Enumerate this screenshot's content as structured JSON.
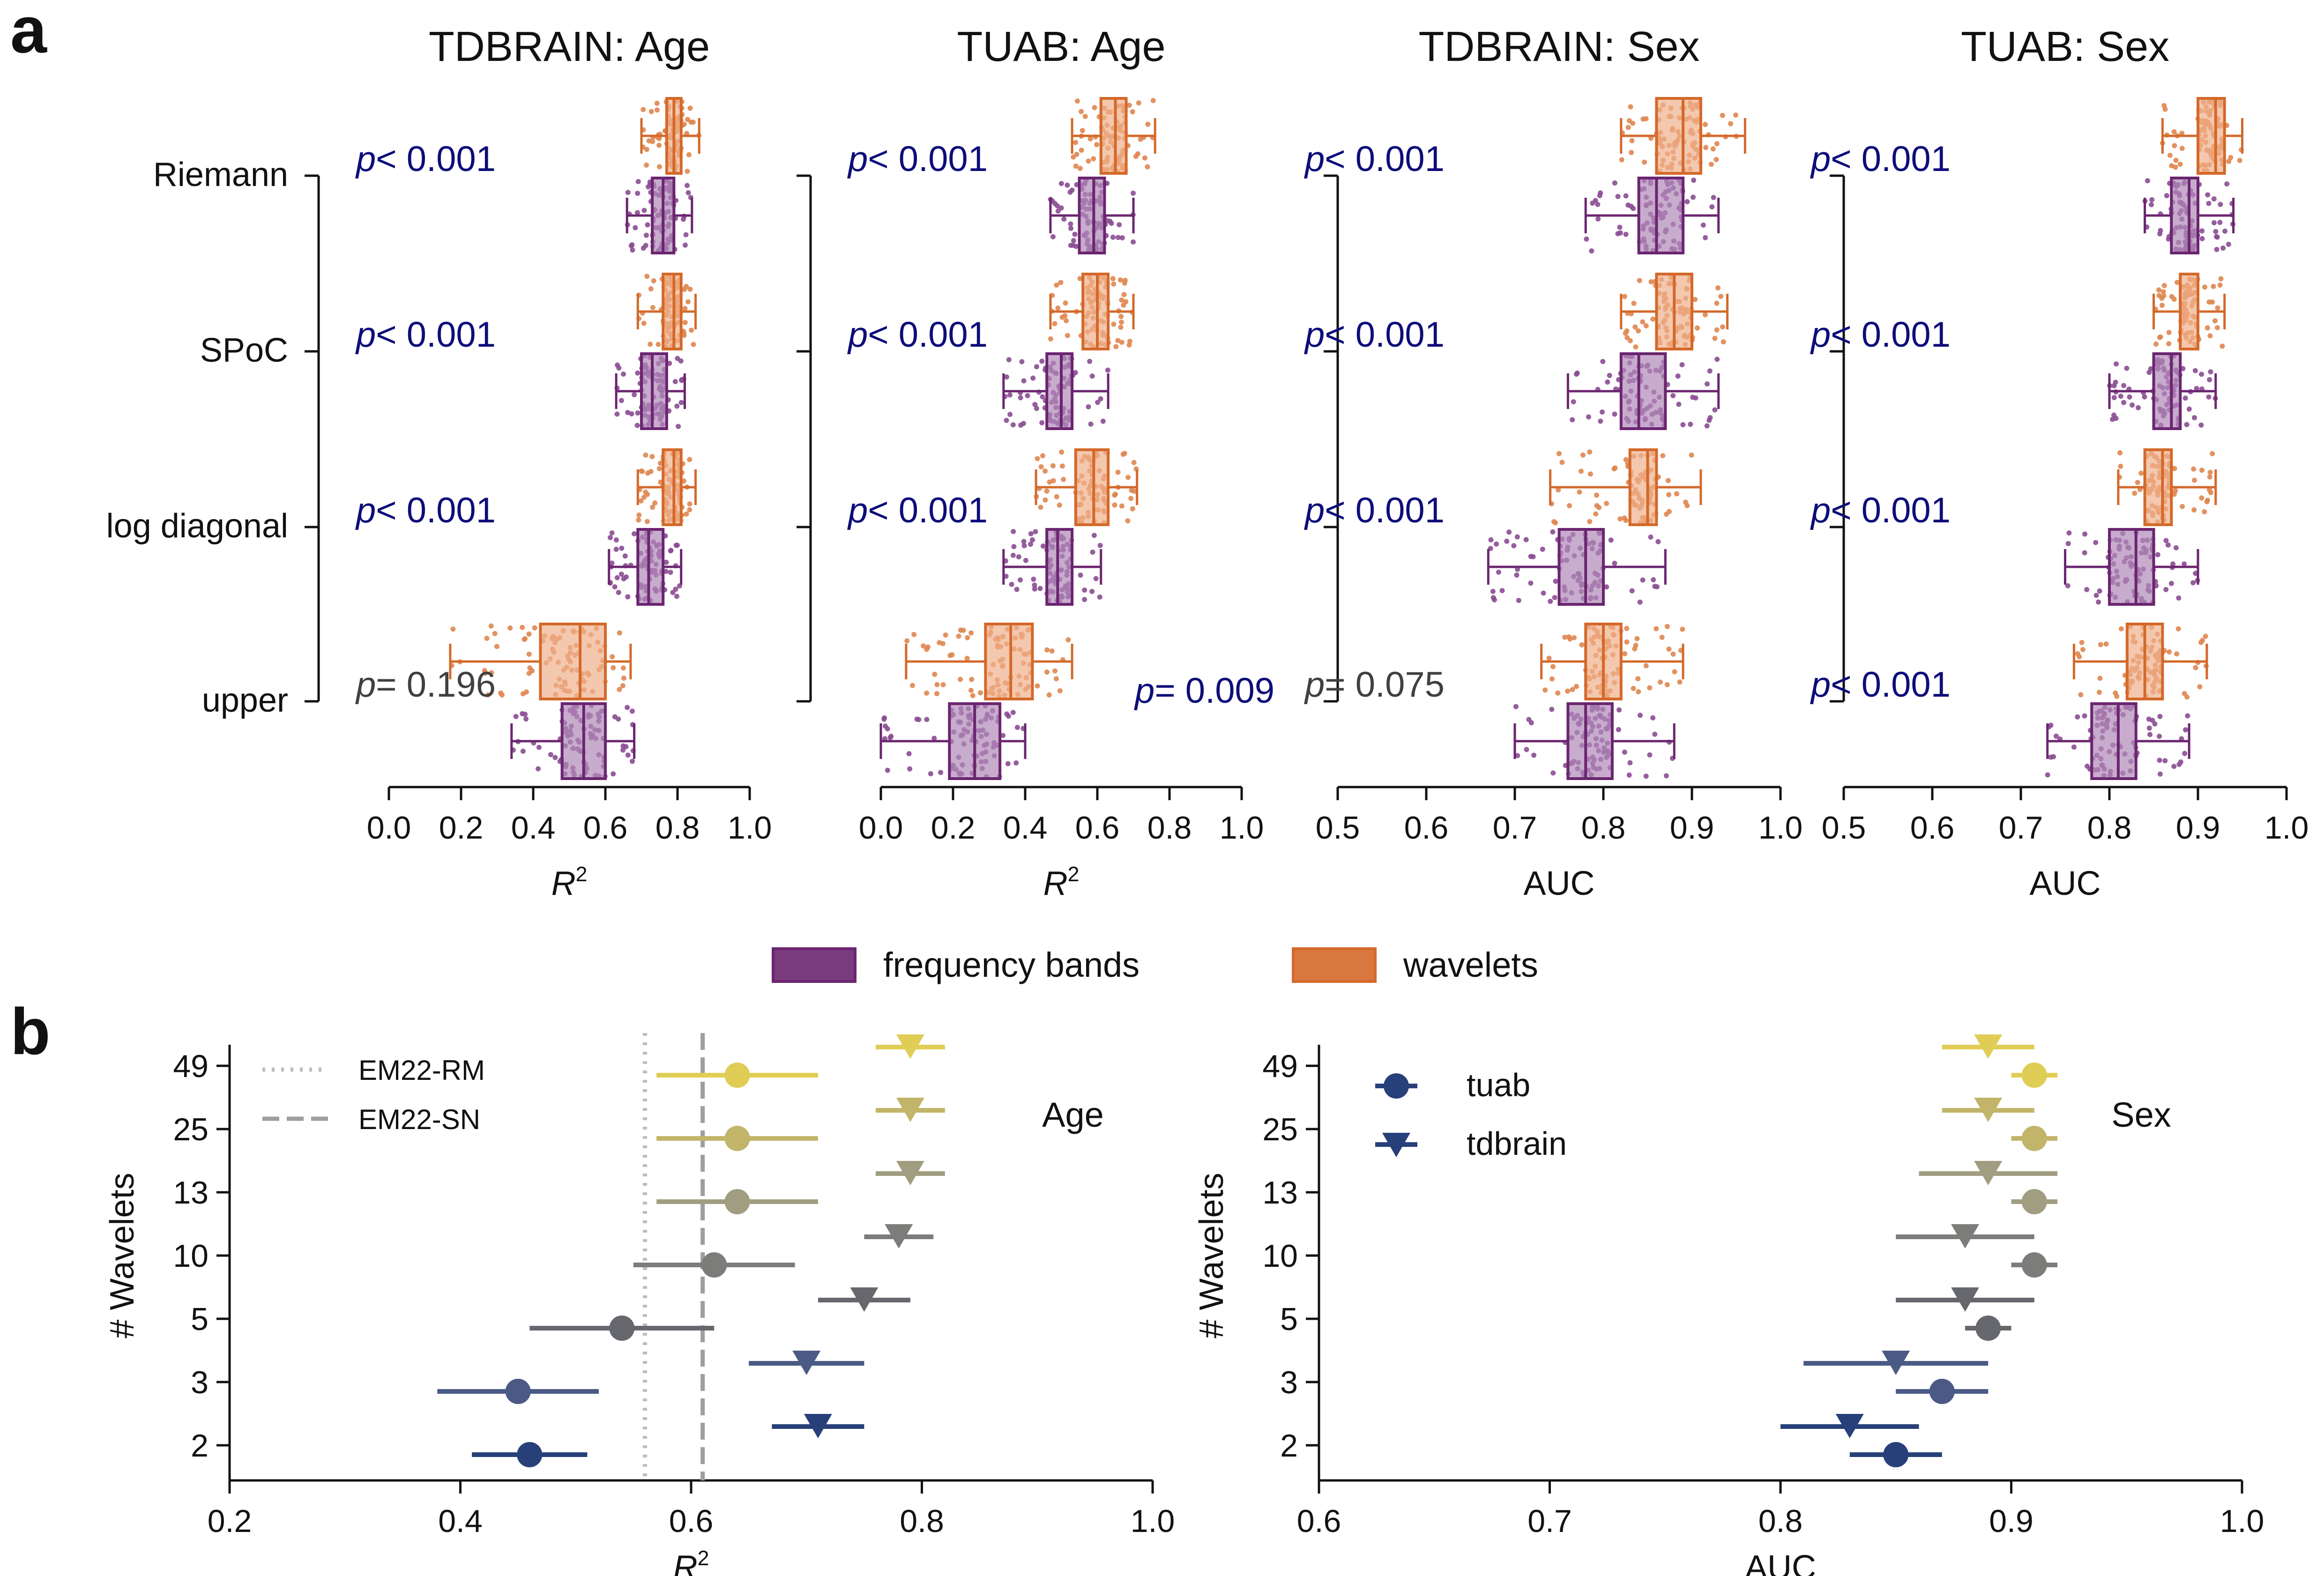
{
  "panel_labels": {
    "a": "a",
    "b": "b"
  },
  "colors": {
    "freq": "#6b2570",
    "freq_fill": "#b189b8",
    "freq_pts": "#8a4c92",
    "wav": "#d4692a",
    "wav_fill": "#efb08c",
    "wav_pts": "#df8650",
    "pval_sig": "#0d0d7a",
    "pval_ns": "#404040",
    "hline": "#bdbdbd",
    "vline": "#9e9e9e"
  },
  "methods": [
    "Riemann",
    "SPoC",
    "log diagonal",
    "upper"
  ],
  "legend_a": {
    "freq": "frequency bands",
    "wav": "wavelets"
  },
  "chart_data": [
    {
      "type": "box",
      "title": "TDBRAIN: Age",
      "xlabel": "R2",
      "xlim": [
        0.0,
        1.0
      ],
      "xticks": [
        "0.0",
        "0.2",
        "0.4",
        "0.6",
        "0.8",
        "1.0"
      ],
      "categories": [
        "Riemann",
        "SPoC",
        "log diagonal",
        "upper"
      ],
      "p_values": [
        {
          "prefix": "p",
          "text": "< 0.001"
        },
        {
          "prefix": "p",
          "text": "< 0.001"
        },
        {
          "prefix": "p",
          "text": "< 0.001"
        },
        {
          "prefix": "p",
          "text": "= 0.196"
        }
      ],
      "p_significant": [
        true,
        true,
        true,
        false
      ],
      "p_side": [
        "left",
        "left",
        "left",
        "left"
      ],
      "series": [
        {
          "name": "wavelets",
          "boxes": [
            [
              0.7,
              0.77,
              0.79,
              0.81,
              0.86
            ],
            [
              0.69,
              0.76,
              0.79,
              0.81,
              0.85
            ],
            [
              0.69,
              0.76,
              0.79,
              0.81,
              0.85
            ],
            [
              0.17,
              0.42,
              0.53,
              0.6,
              0.67
            ]
          ]
        },
        {
          "name": "frequency bands",
          "boxes": [
            [
              0.66,
              0.73,
              0.76,
              0.79,
              0.84
            ],
            [
              0.63,
              0.7,
              0.73,
              0.77,
              0.82
            ],
            [
              0.61,
              0.69,
              0.72,
              0.76,
              0.81
            ],
            [
              0.34,
              0.48,
              0.54,
              0.6,
              0.68
            ]
          ]
        }
      ]
    },
    {
      "type": "box",
      "title": "TUAB: Age",
      "xlabel": "R2",
      "xlim": [
        0.0,
        1.0
      ],
      "xticks": [
        "0.0",
        "0.2",
        "0.4",
        "0.6",
        "0.8",
        "1.0"
      ],
      "categories": [
        "Riemann",
        "SPoC",
        "log diagonal",
        "upper"
      ],
      "p_values": [
        {
          "prefix": "p",
          "text": "< 0.001"
        },
        {
          "prefix": "p",
          "text": "< 0.001"
        },
        {
          "prefix": "p",
          "text": "< 0.001"
        },
        {
          "prefix": "p",
          "text": "= 0.009"
        }
      ],
      "p_significant": [
        true,
        true,
        true,
        true
      ],
      "p_side": [
        "left",
        "left",
        "left",
        "right"
      ],
      "series": [
        {
          "name": "wavelets",
          "boxes": [
            [
              0.53,
              0.61,
              0.65,
              0.68,
              0.76
            ],
            [
              0.47,
              0.56,
              0.6,
              0.63,
              0.7
            ],
            [
              0.43,
              0.54,
              0.59,
              0.63,
              0.71
            ],
            [
              0.07,
              0.29,
              0.36,
              0.42,
              0.53
            ]
          ]
        },
        {
          "name": "frequency bands",
          "boxes": [
            [
              0.47,
              0.55,
              0.59,
              0.62,
              0.7
            ],
            [
              0.34,
              0.46,
              0.5,
              0.53,
              0.63
            ],
            [
              0.34,
              0.46,
              0.49,
              0.53,
              0.61
            ],
            [
              0.0,
              0.19,
              0.26,
              0.33,
              0.4
            ]
          ]
        }
      ]
    },
    {
      "type": "box",
      "title": "TDBRAIN: Sex",
      "xlabel": "AUC",
      "xlim": [
        0.5,
        1.0
      ],
      "xticks": [
        "0.5",
        "0.6",
        "0.7",
        "0.8",
        "0.9",
        "1.0"
      ],
      "categories": [
        "Riemann",
        "SPoC",
        "log diagonal",
        "upper"
      ],
      "p_values": [
        {
          "prefix": "p",
          "text": "< 0.001"
        },
        {
          "prefix": "p",
          "text": "< 0.001"
        },
        {
          "prefix": "p",
          "text": "< 0.001"
        },
        {
          "prefix": "p",
          "text": "= 0.075"
        }
      ],
      "p_significant": [
        true,
        true,
        true,
        false
      ],
      "p_side": [
        "left",
        "left",
        "left",
        "left"
      ],
      "series": [
        {
          "name": "wavelets",
          "boxes": [
            [
              0.82,
              0.86,
              0.89,
              0.91,
              0.96
            ],
            [
              0.82,
              0.86,
              0.88,
              0.9,
              0.94
            ],
            [
              0.74,
              0.83,
              0.85,
              0.86,
              0.91
            ],
            [
              0.73,
              0.78,
              0.8,
              0.82,
              0.89
            ]
          ]
        },
        {
          "name": "frequency bands",
          "boxes": [
            [
              0.78,
              0.84,
              0.86,
              0.89,
              0.93
            ],
            [
              0.76,
              0.82,
              0.84,
              0.87,
              0.93
            ],
            [
              0.67,
              0.75,
              0.78,
              0.8,
              0.87
            ],
            [
              0.7,
              0.76,
              0.78,
              0.81,
              0.88
            ]
          ]
        }
      ]
    },
    {
      "type": "box",
      "title": "TUAB: Sex",
      "xlabel": "AUC",
      "xlim": [
        0.5,
        1.0
      ],
      "xticks": [
        "0.5",
        "0.6",
        "0.7",
        "0.8",
        "0.9",
        "1.0"
      ],
      "categories": [
        "Riemann",
        "SPoC",
        "log diagonal",
        "upper"
      ],
      "p_values": [
        {
          "prefix": "p",
          "text": "< 0.001"
        },
        {
          "prefix": "p",
          "text": "< 0.001"
        },
        {
          "prefix": "p",
          "text": "< 0.001"
        },
        {
          "prefix": "p",
          "text": "< 0.001"
        }
      ],
      "p_significant": [
        true,
        true,
        true,
        true
      ],
      "p_side": [
        "left",
        "left",
        "left",
        "left"
      ],
      "series": [
        {
          "name": "wavelets",
          "boxes": [
            [
              0.86,
              0.9,
              0.92,
              0.93,
              0.95
            ],
            [
              0.85,
              0.88,
              0.9,
              0.9,
              0.93
            ],
            [
              0.81,
              0.84,
              0.86,
              0.87,
              0.92
            ],
            [
              0.76,
              0.82,
              0.84,
              0.86,
              0.91
            ]
          ]
        },
        {
          "name": "frequency bands",
          "boxes": [
            [
              0.84,
              0.87,
              0.89,
              0.9,
              0.94
            ],
            [
              0.8,
              0.85,
              0.87,
              0.88,
              0.92
            ],
            [
              0.75,
              0.8,
              0.83,
              0.85,
              0.9
            ],
            [
              0.73,
              0.78,
              0.81,
              0.83,
              0.89
            ]
          ]
        }
      ]
    },
    {
      "type": "errorbar",
      "title": "Age",
      "xlabel": "R2",
      "ylabel": "# Wavelets",
      "xlim": [
        0.2,
        1.0
      ],
      "xticks": [
        "0.2",
        "0.4",
        "0.6",
        "0.8",
        "1.0"
      ],
      "categories": [
        "2",
        "3",
        "5",
        "10",
        "13",
        "25",
        "49"
      ],
      "category_colors": [
        "#27407a",
        "#4a5a85",
        "#67686e",
        "#7c7c7a",
        "#a19d80",
        "#c2b56a",
        "#e0cd55"
      ],
      "reference_lines": [
        {
          "name": "EM22-RM",
          "x": 0.56,
          "style": "dotted"
        },
        {
          "name": "EM22-SN",
          "x": 0.61,
          "style": "dashed"
        }
      ],
      "series": [
        {
          "name": "tuab",
          "marker": "circle",
          "points": [
            [
              0.46,
              0.41,
              0.51
            ],
            [
              0.45,
              0.38,
              0.52
            ],
            [
              0.54,
              0.46,
              0.62
            ],
            [
              0.62,
              0.55,
              0.69
            ],
            [
              0.64,
              0.57,
              0.71
            ],
            [
              0.64,
              0.57,
              0.71
            ],
            [
              0.64,
              0.57,
              0.71
            ]
          ]
        },
        {
          "name": "tdbrain",
          "marker": "triangle-down",
          "points": [
            [
              0.71,
              0.67,
              0.75
            ],
            [
              0.7,
              0.65,
              0.75
            ],
            [
              0.75,
              0.71,
              0.79
            ],
            [
              0.78,
              0.75,
              0.81
            ],
            [
              0.79,
              0.76,
              0.82
            ],
            [
              0.79,
              0.76,
              0.82
            ],
            [
              0.79,
              0.76,
              0.82
            ]
          ]
        }
      ]
    },
    {
      "type": "errorbar",
      "title": "Sex",
      "xlabel": "AUC",
      "ylabel": "# Wavelets",
      "xlim": [
        0.6,
        1.0
      ],
      "xticks": [
        "0.6",
        "0.7",
        "0.8",
        "0.9",
        "1.0"
      ],
      "categories": [
        "2",
        "3",
        "5",
        "10",
        "13",
        "25",
        "49"
      ],
      "category_colors": [
        "#27407a",
        "#4a5a85",
        "#67686e",
        "#7c7c7a",
        "#a19d80",
        "#c2b56a",
        "#e0cd55"
      ],
      "series": [
        {
          "name": "tuab",
          "marker": "circle",
          "points": [
            [
              0.85,
              0.83,
              0.87
            ],
            [
              0.87,
              0.85,
              0.89
            ],
            [
              0.89,
              0.88,
              0.9
            ],
            [
              0.91,
              0.9,
              0.92
            ],
            [
              0.91,
              0.9,
              0.92
            ],
            [
              0.91,
              0.9,
              0.92
            ],
            [
              0.91,
              0.9,
              0.92
            ]
          ]
        },
        {
          "name": "tdbrain",
          "marker": "triangle-down",
          "points": [
            [
              0.83,
              0.8,
              0.86
            ],
            [
              0.85,
              0.81,
              0.89
            ],
            [
              0.88,
              0.85,
              0.91
            ],
            [
              0.88,
              0.85,
              0.91
            ],
            [
              0.89,
              0.86,
              0.92
            ],
            [
              0.89,
              0.87,
              0.91
            ],
            [
              0.89,
              0.87,
              0.91
            ]
          ]
        }
      ]
    }
  ]
}
